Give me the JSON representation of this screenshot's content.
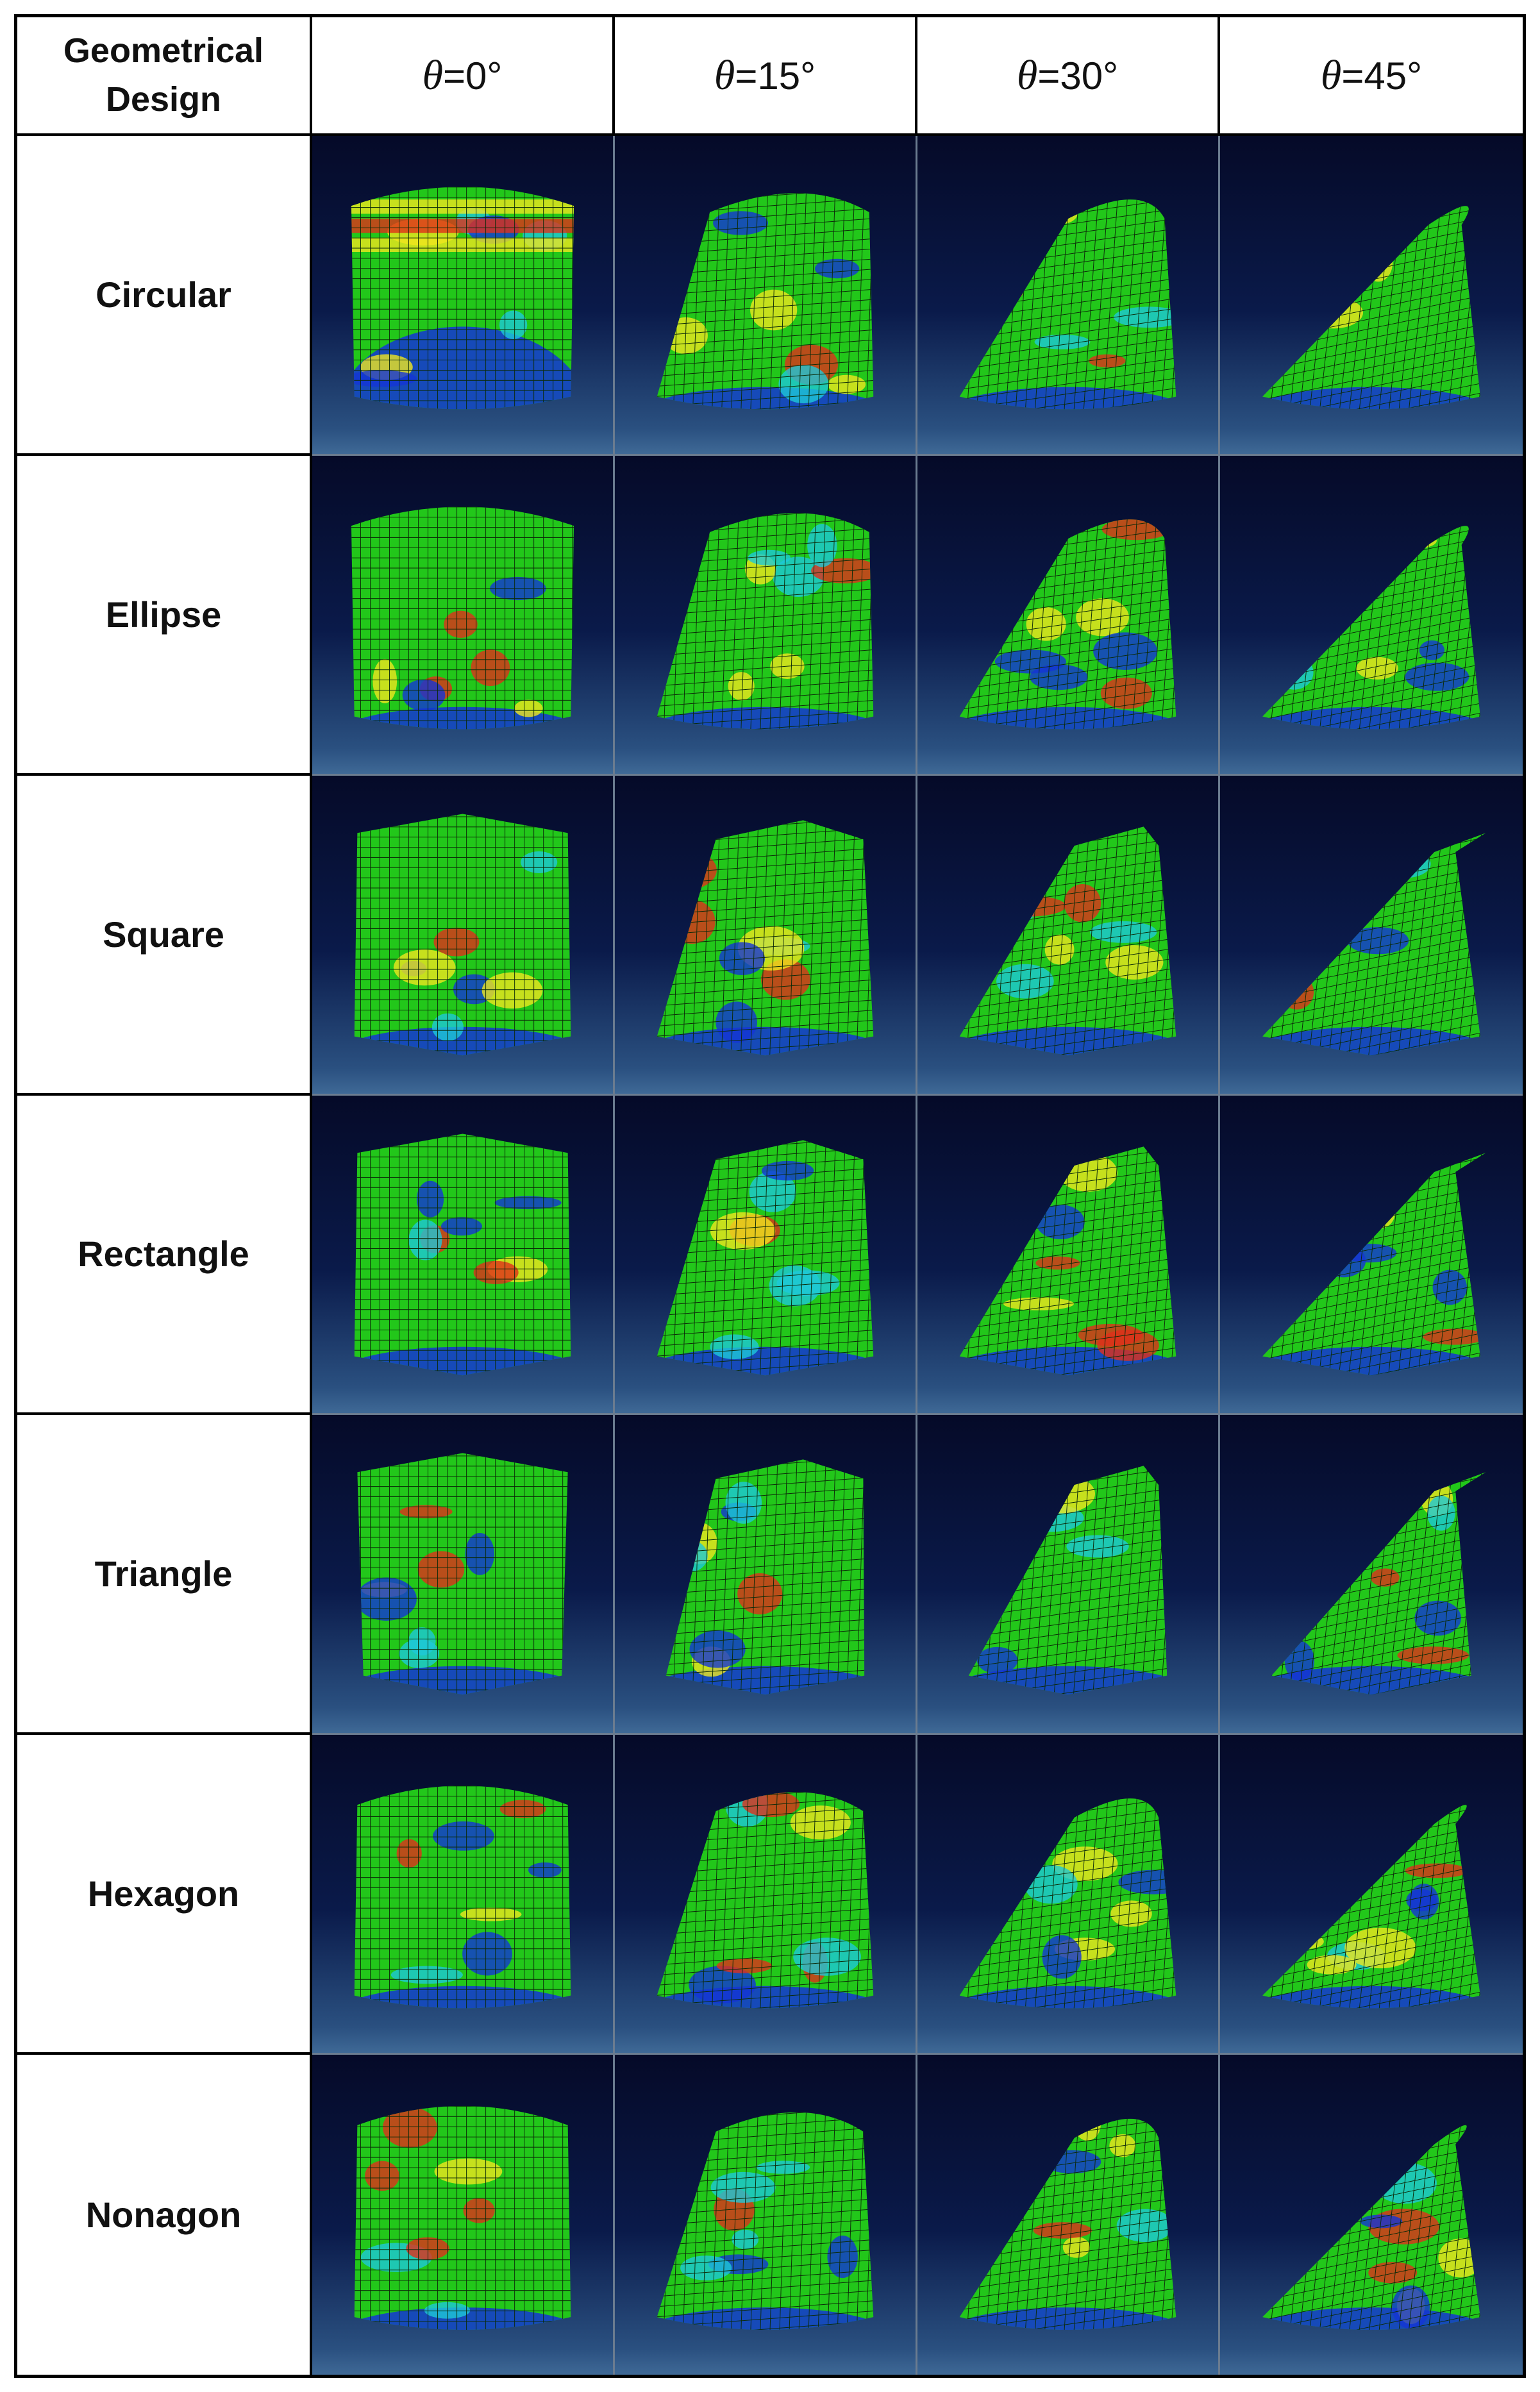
{
  "header": {
    "first_col": "Geometrical\nDesign",
    "theta_symbol": "θ",
    "angles": [
      "=0°",
      "=15°",
      "=30°",
      "=45°"
    ]
  },
  "rows": [
    {
      "label": "Circular",
      "shape": "circular"
    },
    {
      "label": "Ellipse",
      "shape": "ellipse"
    },
    {
      "label": "Square",
      "shape": "square"
    },
    {
      "label": "Rectangle",
      "shape": "rectangle"
    },
    {
      "label": "Triangle",
      "shape": "triangle"
    },
    {
      "label": "Hexagon",
      "shape": "hexagon"
    },
    {
      "label": "Nonagon",
      "shape": "nonagon"
    }
  ],
  "colors": {
    "mesh_green": "#22c71a",
    "mesh_blue": "#1434d6",
    "mesh_cyan": "#1ec8d8",
    "mesh_yellow": "#f0e61e",
    "mesh_red": "#e0301a",
    "grid_line": "#0b2a08",
    "background_top": "#050a28",
    "background_bottom": "#3f6996"
  }
}
